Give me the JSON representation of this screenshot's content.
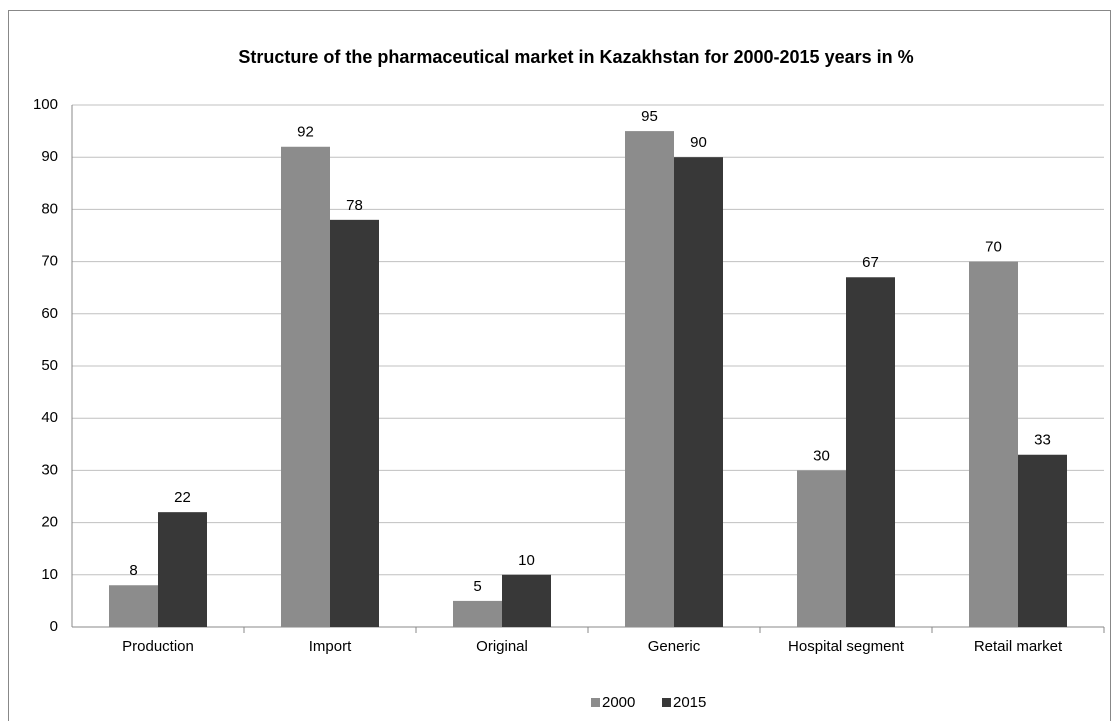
{
  "chart_data": {
    "type": "bar",
    "title": "Structure of the pharmaceutical market in Kazakhstan for 2000-2015 years in %",
    "categories": [
      "Production",
      "Import",
      "Original",
      "Generic",
      "Hospital segment",
      "Retail market"
    ],
    "series": [
      {
        "name": "2000",
        "color": "#8c8c8c",
        "values": [
          8,
          92,
          5,
          95,
          30,
          70
        ]
      },
      {
        "name": "2015",
        "color": "#383838",
        "values": [
          22,
          78,
          10,
          90,
          67,
          33
        ]
      }
    ],
    "ylim": [
      0,
      100
    ],
    "yticks": [
      0,
      10,
      20,
      30,
      40,
      50,
      60,
      70,
      80,
      90,
      100
    ],
    "grid": true,
    "legend": "bottom"
  }
}
